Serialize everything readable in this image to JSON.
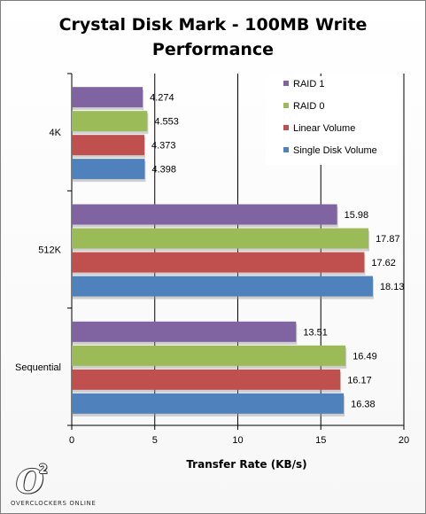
{
  "chart_data": {
    "type": "bar",
    "orientation": "horizontal",
    "title": "Crystal Disk Mark - 100MB Write Performance",
    "title_lines": [
      "Crystal Disk Mark - 100MB Write",
      "Performance"
    ],
    "xlabel": "Transfer Rate (KB/s)",
    "ylabel": "",
    "xlim": [
      0,
      20
    ],
    "xticks": [
      0,
      5,
      10,
      15,
      20
    ],
    "categories": [
      "4K",
      "512K",
      "Sequential"
    ],
    "series": [
      {
        "name": "RAID 1",
        "color": "#8064a2",
        "values": [
          4.274,
          15.98,
          13.51
        ],
        "labels": [
          "4.274",
          "15.98",
          "13.51"
        ]
      },
      {
        "name": "RAID 0",
        "color": "#9bbb59",
        "values": [
          4.553,
          17.87,
          16.49
        ],
        "labels": [
          "4.553",
          "17.87",
          "16.49"
        ]
      },
      {
        "name": "Linear Volume",
        "color": "#c0504d",
        "values": [
          4.373,
          17.62,
          16.17
        ],
        "labels": [
          "4.373",
          "17.62",
          "16.17"
        ]
      },
      {
        "name": "Single Disk Volume",
        "color": "#4f81bd",
        "values": [
          4.398,
          18.13,
          16.38
        ],
        "labels": [
          "4.398",
          "18.13",
          "16.38"
        ]
      }
    ],
    "grid": "vertical major gridlines",
    "legend_position": "top-right"
  },
  "logo": {
    "mark": "O",
    "superscript": "2",
    "text": "OVERCLOCKERS ONLINE"
  }
}
